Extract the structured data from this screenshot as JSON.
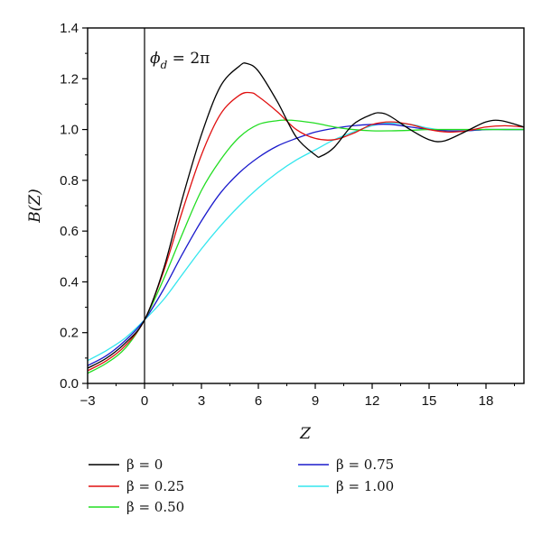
{
  "chart_data": {
    "type": "line",
    "annotation": "ϕ_d = 2π",
    "annotation_main": "ϕ",
    "annotation_sub": "d",
    "annotation_rest": " = 2π",
    "xlabel": "Z",
    "ylabel": "B(Z)",
    "xlim": [
      -3,
      20
    ],
    "ylim": [
      0,
      1.4
    ],
    "x_ticks": [
      -3,
      0,
      3,
      6,
      9,
      12,
      15,
      18
    ],
    "y_ticks": [
      0.0,
      0.2,
      0.4,
      0.6,
      0.8,
      1.0,
      1.2,
      1.4
    ],
    "x_tick_labels": [
      "−3",
      "0",
      "3",
      "6",
      "9",
      "12",
      "15",
      "18"
    ],
    "y_tick_labels": [
      "0.0",
      "0.2",
      "0.4",
      "0.6",
      "0.8",
      "1.0",
      "1.2",
      "1.4"
    ],
    "vertical_line_x": 0,
    "grid": false,
    "legend_position": "bottom",
    "series": [
      {
        "name": "β = 0",
        "color": "#000000",
        "x": [
          -3,
          -2,
          -1,
          0,
          1,
          2,
          3,
          4,
          5,
          5.4,
          6,
          7,
          8,
          9,
          9.3,
          10,
          11,
          12,
          12.5,
          13,
          14,
          15,
          15.8,
          17,
          18,
          18.8,
          20
        ],
        "y": [
          0.06,
          0.1,
          0.16,
          0.25,
          0.45,
          0.73,
          0.98,
          1.17,
          1.25,
          1.26,
          1.23,
          1.11,
          0.97,
          0.9,
          0.895,
          0.93,
          1.02,
          1.06,
          1.065,
          1.05,
          1.0,
          0.96,
          0.955,
          0.995,
          1.03,
          1.035,
          1.01
        ]
      },
      {
        "name": "β = 0.25",
        "color": "#e01010",
        "x": [
          -3,
          -2,
          -1,
          0,
          1,
          2,
          3,
          4,
          5,
          5.6,
          6,
          7,
          8,
          9,
          10,
          11,
          12,
          13,
          14,
          15,
          16,
          17,
          18,
          19,
          20
        ],
        "y": [
          0.05,
          0.09,
          0.15,
          0.25,
          0.44,
          0.68,
          0.9,
          1.06,
          1.135,
          1.145,
          1.13,
          1.07,
          1.0,
          0.965,
          0.96,
          0.985,
          1.02,
          1.03,
          1.02,
          1.0,
          0.99,
          0.995,
          1.01,
          1.015,
          1.01
        ]
      },
      {
        "name": "β = 0.50",
        "color": "#22dd22",
        "x": [
          -3,
          -2,
          -1,
          0,
          1,
          2,
          3,
          4,
          5,
          6,
          7,
          7.5,
          8,
          9,
          10,
          11,
          12,
          13,
          14,
          15,
          16,
          17,
          18,
          19,
          20
        ],
        "y": [
          0.04,
          0.08,
          0.14,
          0.25,
          0.41,
          0.59,
          0.76,
          0.88,
          0.97,
          1.02,
          1.035,
          1.037,
          1.035,
          1.025,
          1.01,
          1.0,
          0.995,
          0.995,
          0.997,
          1.0,
          1.0,
          1.0,
          1.0,
          1.0,
          1.0
        ]
      },
      {
        "name": "β = 0.75",
        "color": "#1a1acc",
        "x": [
          -3,
          -2,
          -1,
          0,
          1,
          2,
          3,
          4,
          5,
          6,
          7,
          8,
          9,
          10,
          11,
          12,
          13,
          14,
          15,
          16,
          17,
          18,
          19,
          20
        ],
        "y": [
          0.07,
          0.11,
          0.17,
          0.25,
          0.37,
          0.51,
          0.64,
          0.75,
          0.83,
          0.89,
          0.935,
          0.965,
          0.99,
          1.005,
          1.015,
          1.02,
          1.02,
          1.01,
          1.0,
          0.995,
          0.995,
          1.0,
          1.0,
          1.0
        ]
      },
      {
        "name": "β = 1.00",
        "color": "#33e6ee",
        "x": [
          -3,
          -2,
          -1,
          0,
          1,
          2,
          3,
          4,
          5,
          6,
          7,
          8,
          9,
          10,
          11,
          12,
          12.8,
          14,
          15,
          16,
          17,
          18,
          19,
          20
        ],
        "y": [
          0.09,
          0.13,
          0.18,
          0.25,
          0.33,
          0.43,
          0.53,
          0.62,
          0.7,
          0.77,
          0.83,
          0.88,
          0.92,
          0.96,
          0.99,
          1.015,
          1.025,
          1.02,
          1.005,
          0.995,
          0.995,
          1.0,
          1.0,
          1.0
        ]
      }
    ]
  }
}
